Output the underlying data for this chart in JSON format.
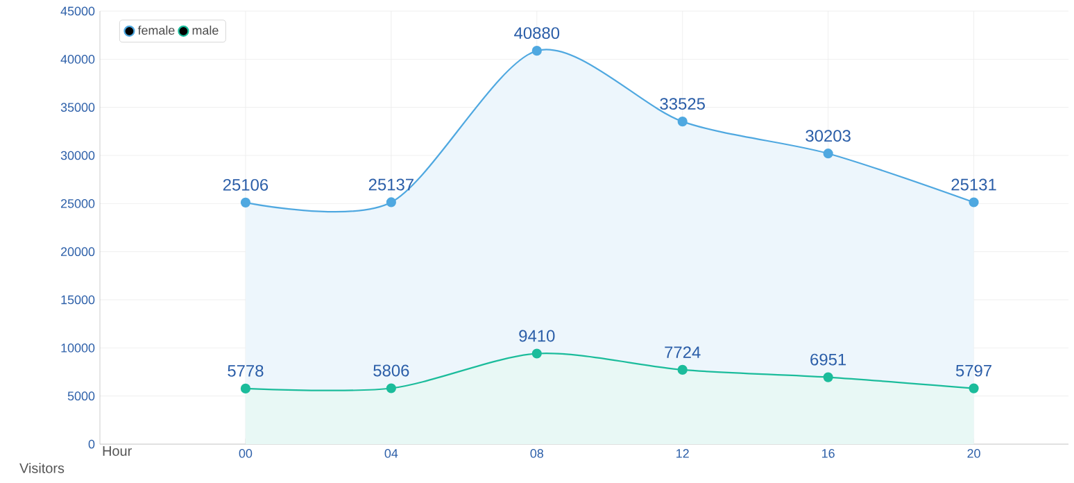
{
  "chart_data": {
    "type": "area",
    "xlabel": "Hour",
    "ylabel": "Visitors",
    "categories": [
      "00",
      "04",
      "08",
      "12",
      "16",
      "20"
    ],
    "series": [
      {
        "name": "female",
        "color": "#4fa8e0",
        "values": [
          25106,
          25137,
          40880,
          33525,
          30203,
          25131
        ]
      },
      {
        "name": "male",
        "color": "#1bbc9b",
        "values": [
          5778,
          5806,
          9410,
          7724,
          6951,
          5797
        ]
      }
    ],
    "ylim": [
      0,
      45000
    ],
    "yticks": [
      0,
      5000,
      10000,
      15000,
      20000,
      25000,
      30000,
      35000,
      40000,
      45000
    ],
    "grid": true,
    "legend": "top left",
    "marker": "circle",
    "line_style": "solid",
    "data_labels": true
  }
}
